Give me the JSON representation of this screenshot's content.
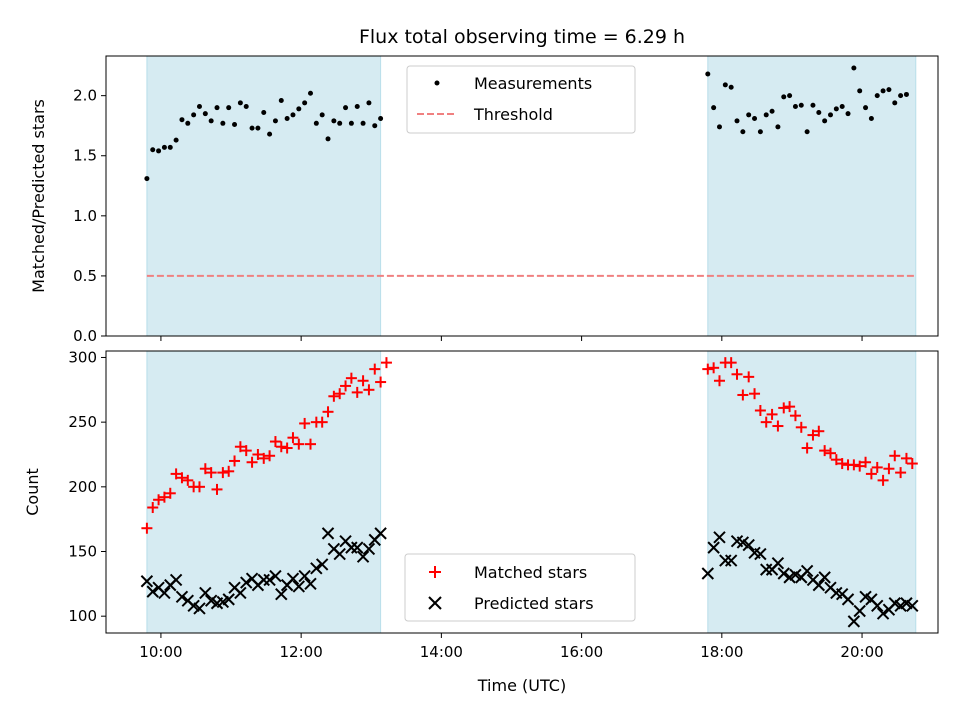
{
  "figure": {
    "title": "Flux total observing time = 6.29 h",
    "xlabel": "Time (UTC)"
  },
  "chart_data": [
    {
      "type": "scatter",
      "panel": "top",
      "ylabel": "Matched/Predicted stars",
      "xlim": [
        "09:13",
        "21:05"
      ],
      "ylim": [
        0,
        2.33
      ],
      "x_ticks": [
        "10:00",
        "12:00",
        "14:00",
        "16:00",
        "18:00",
        "20:00"
      ],
      "y_ticks": [
        "0.0",
        "0.5",
        "1.0",
        "1.5",
        "2.0"
      ],
      "grid": false,
      "legend_position": "top-center",
      "shaded_windows": [
        [
          "09:48",
          "13:08"
        ],
        [
          "17:48",
          "20:46"
        ]
      ],
      "shade_color": "#add8e6",
      "series": [
        {
          "name": "Measurements",
          "marker": "dot",
          "color": "#000000",
          "points": [
            [
              "09:48",
              1.31
            ],
            [
              "09:53",
              1.55
            ],
            [
              "09:58",
              1.54
            ],
            [
              "10:03",
              1.57
            ],
            [
              "10:08",
              1.57
            ],
            [
              "10:13",
              1.63
            ],
            [
              "10:18",
              1.8
            ],
            [
              "10:23",
              1.77
            ],
            [
              "10:28",
              1.84
            ],
            [
              "10:33",
              1.91
            ],
            [
              "10:38",
              1.85
            ],
            [
              "10:43",
              1.79
            ],
            [
              "10:48",
              1.9
            ],
            [
              "10:53",
              1.77
            ],
            [
              "10:58",
              1.9
            ],
            [
              "11:03",
              1.76
            ],
            [
              "11:08",
              1.94
            ],
            [
              "11:13",
              1.91
            ],
            [
              "11:18",
              1.73
            ],
            [
              "11:23",
              1.73
            ],
            [
              "11:28",
              1.86
            ],
            [
              "11:33",
              1.68
            ],
            [
              "11:38",
              1.79
            ],
            [
              "11:43",
              1.96
            ],
            [
              "11:48",
              1.81
            ],
            [
              "11:53",
              1.84
            ],
            [
              "11:58",
              1.89
            ],
            [
              "12:03",
              1.94
            ],
            [
              "12:08",
              2.02
            ],
            [
              "12:13",
              1.77
            ],
            [
              "12:18",
              1.84
            ],
            [
              "12:23",
              1.64
            ],
            [
              "12:28",
              1.79
            ],
            [
              "12:33",
              1.77
            ],
            [
              "12:38",
              1.9
            ],
            [
              "12:43",
              1.77
            ],
            [
              "12:48",
              1.91
            ],
            [
              "12:53",
              1.77
            ],
            [
              "12:58",
              1.94
            ],
            [
              "13:03",
              1.75
            ],
            [
              "13:08",
              1.81
            ],
            [
              "17:48",
              2.18
            ],
            [
              "17:53",
              1.9
            ],
            [
              "17:58",
              1.74
            ],
            [
              "18:03",
              2.09
            ],
            [
              "18:08",
              2.07
            ],
            [
              "18:13",
              1.79
            ],
            [
              "18:18",
              1.7
            ],
            [
              "18:23",
              1.84
            ],
            [
              "18:28",
              1.81
            ],
            [
              "18:33",
              1.7
            ],
            [
              "18:38",
              1.84
            ],
            [
              "18:43",
              1.87
            ],
            [
              "18:48",
              1.74
            ],
            [
              "18:53",
              1.99
            ],
            [
              "18:58",
              2.0
            ],
            [
              "19:03",
              1.91
            ],
            [
              "19:08",
              1.92
            ],
            [
              "19:13",
              1.7
            ],
            [
              "19:18",
              1.92
            ],
            [
              "19:23",
              1.86
            ],
            [
              "19:28",
              1.79
            ],
            [
              "19:33",
              1.84
            ],
            [
              "19:38",
              1.89
            ],
            [
              "19:43",
              1.91
            ],
            [
              "19:48",
              1.85
            ],
            [
              "19:53",
              2.23
            ],
            [
              "19:58",
              2.04
            ],
            [
              "20:03",
              1.9
            ],
            [
              "20:08",
              1.81
            ],
            [
              "20:13",
              2.0
            ],
            [
              "20:18",
              2.04
            ],
            [
              "20:23",
              2.05
            ],
            [
              "20:28",
              1.94
            ],
            [
              "20:33",
              2.0
            ],
            [
              "20:38",
              2.01
            ]
          ]
        },
        {
          "name": "Threshold",
          "marker": "dashed-line",
          "color": "#f08080",
          "value": 0.5,
          "x_range": [
            "09:48",
            "20:46"
          ]
        }
      ]
    },
    {
      "type": "scatter",
      "panel": "bottom",
      "ylabel": "Count",
      "xlim": [
        "09:13",
        "21:05"
      ],
      "ylim": [
        87,
        305
      ],
      "x_ticks": [
        "10:00",
        "12:00",
        "14:00",
        "16:00",
        "18:00",
        "20:00"
      ],
      "y_ticks": [
        "100",
        "150",
        "200",
        "250",
        "300"
      ],
      "grid": false,
      "legend_position": "bottom-center",
      "shaded_windows": [
        [
          "09:48",
          "13:08"
        ],
        [
          "17:48",
          "20:46"
        ]
      ],
      "shade_color": "#add8e6",
      "series": [
        {
          "name": "Matched stars",
          "marker": "plus",
          "color": "#ff0000",
          "points": [
            [
              "09:48",
              168
            ],
            [
              "09:53",
              184
            ],
            [
              "09:58",
              190
            ],
            [
              "10:03",
              192
            ],
            [
              "10:08",
              195
            ],
            [
              "10:13",
              210
            ],
            [
              "10:18",
              207
            ],
            [
              "10:23",
              205
            ],
            [
              "10:28",
              200
            ],
            [
              "10:33",
              200
            ],
            [
              "10:38",
              214
            ],
            [
              "10:43",
              211
            ],
            [
              "10:48",
              198
            ],
            [
              "10:53",
              211
            ],
            [
              "10:58",
              212
            ],
            [
              "11:03",
              220
            ],
            [
              "11:08",
              231
            ],
            [
              "11:13",
              228
            ],
            [
              "11:18",
              219
            ],
            [
              "11:23",
              225
            ],
            [
              "11:28",
              222
            ],
            [
              "11:33",
              224
            ],
            [
              "11:38",
              235
            ],
            [
              "11:43",
              231
            ],
            [
              "11:48",
              230
            ],
            [
              "11:53",
              238
            ],
            [
              "11:58",
              233
            ],
            [
              "12:03",
              249
            ],
            [
              "12:08",
              233
            ],
            [
              "12:13",
              250
            ],
            [
              "12:18",
              250
            ],
            [
              "12:23",
              258
            ],
            [
              "12:28",
              270
            ],
            [
              "12:33",
              272
            ],
            [
              "12:38",
              278
            ],
            [
              "12:43",
              284
            ],
            [
              "12:48",
              273
            ],
            [
              "12:53",
              282
            ],
            [
              "12:58",
              275
            ],
            [
              "13:03",
              291
            ],
            [
              "13:08",
              281
            ],
            [
              "13:13",
              296
            ],
            [
              "17:48",
              291
            ],
            [
              "17:53",
              292
            ],
            [
              "17:58",
              282
            ],
            [
              "18:03",
              296
            ],
            [
              "18:08",
              296
            ],
            [
              "18:13",
              287
            ],
            [
              "18:18",
              271
            ],
            [
              "18:23",
              285
            ],
            [
              "18:28",
              272
            ],
            [
              "18:33",
              259
            ],
            [
              "18:38",
              250
            ],
            [
              "18:43",
              256
            ],
            [
              "18:48",
              247
            ],
            [
              "18:53",
              261
            ],
            [
              "18:58",
              262
            ],
            [
              "19:03",
              255
            ],
            [
              "19:08",
              246
            ],
            [
              "19:13",
              230
            ],
            [
              "19:18",
              240
            ],
            [
              "19:23",
              243
            ],
            [
              "19:28",
              228
            ],
            [
              "19:33",
              226
            ],
            [
              "19:38",
              221
            ],
            [
              "19:43",
              218
            ],
            [
              "19:48",
              217
            ],
            [
              "19:53",
              217
            ],
            [
              "19:58",
              216
            ],
            [
              "20:03",
              219
            ],
            [
              "20:08",
              210
            ],
            [
              "20:13",
              215
            ],
            [
              "20:18",
              205
            ],
            [
              "20:23",
              214
            ],
            [
              "20:28",
              224
            ],
            [
              "20:33",
              211
            ],
            [
              "20:38",
              222
            ],
            [
              "20:43",
              218
            ]
          ]
        },
        {
          "name": "Predicted stars",
          "marker": "x",
          "color": "#000000",
          "points": [
            [
              "09:48",
              127
            ],
            [
              "09:53",
              119
            ],
            [
              "09:58",
              122
            ],
            [
              "10:03",
              118
            ],
            [
              "10:08",
              124
            ],
            [
              "10:13",
              128
            ],
            [
              "10:18",
              115
            ],
            [
              "10:23",
              112
            ],
            [
              "10:28",
              108
            ],
            [
              "10:33",
              106
            ],
            [
              "10:38",
              118
            ],
            [
              "10:43",
              112
            ],
            [
              "10:48",
              110
            ],
            [
              "10:53",
              111
            ],
            [
              "10:58",
              113
            ],
            [
              "11:03",
              122
            ],
            [
              "11:08",
              118
            ],
            [
              "11:13",
              126
            ],
            [
              "11:18",
              129
            ],
            [
              "11:23",
              124
            ],
            [
              "11:28",
              128
            ],
            [
              "11:33",
              128
            ],
            [
              "11:38",
              131
            ],
            [
              "11:43",
              117
            ],
            [
              "11:48",
              124
            ],
            [
              "11:53",
              129
            ],
            [
              "11:58",
              123
            ],
            [
              "12:03",
              131
            ],
            [
              "12:08",
              125
            ],
            [
              "12:13",
              137
            ],
            [
              "12:18",
              140
            ],
            [
              "12:23",
              164
            ],
            [
              "12:28",
              152
            ],
            [
              "12:33",
              148
            ],
            [
              "12:38",
              158
            ],
            [
              "12:43",
              153
            ],
            [
              "12:48",
              153
            ],
            [
              "12:53",
              146
            ],
            [
              "12:58",
              152
            ],
            [
              "13:03",
              159
            ],
            [
              "13:08",
              164
            ],
            [
              "17:48",
              133
            ],
            [
              "17:53",
              153
            ],
            [
              "17:58",
              161
            ],
            [
              "18:03",
              143
            ],
            [
              "18:08",
              143
            ],
            [
              "18:13",
              158
            ],
            [
              "18:18",
              157
            ],
            [
              "18:23",
              155
            ],
            [
              "18:28",
              149
            ],
            [
              "18:33",
              148
            ],
            [
              "18:38",
              136
            ],
            [
              "18:43",
              136
            ],
            [
              "18:48",
              141
            ],
            [
              "18:53",
              133
            ],
            [
              "18:58",
              130
            ],
            [
              "19:03",
              132
            ],
            [
              "19:08",
              130
            ],
            [
              "19:13",
              135
            ],
            [
              "19:18",
              128
            ],
            [
              "19:23",
              124
            ],
            [
              "19:28",
              130
            ],
            [
              "19:33",
              122
            ],
            [
              "19:38",
              118
            ],
            [
              "19:43",
              117
            ],
            [
              "19:48",
              113
            ],
            [
              "19:53",
              96
            ],
            [
              "19:58",
              104
            ],
            [
              "20:03",
              115
            ],
            [
              "20:08",
              113
            ],
            [
              "20:13",
              108
            ],
            [
              "20:18",
              102
            ],
            [
              "20:23",
              105
            ],
            [
              "20:28",
              110
            ],
            [
              "20:33",
              108
            ],
            [
              "20:38",
              110
            ],
            [
              "20:43",
              108
            ]
          ]
        }
      ]
    }
  ]
}
